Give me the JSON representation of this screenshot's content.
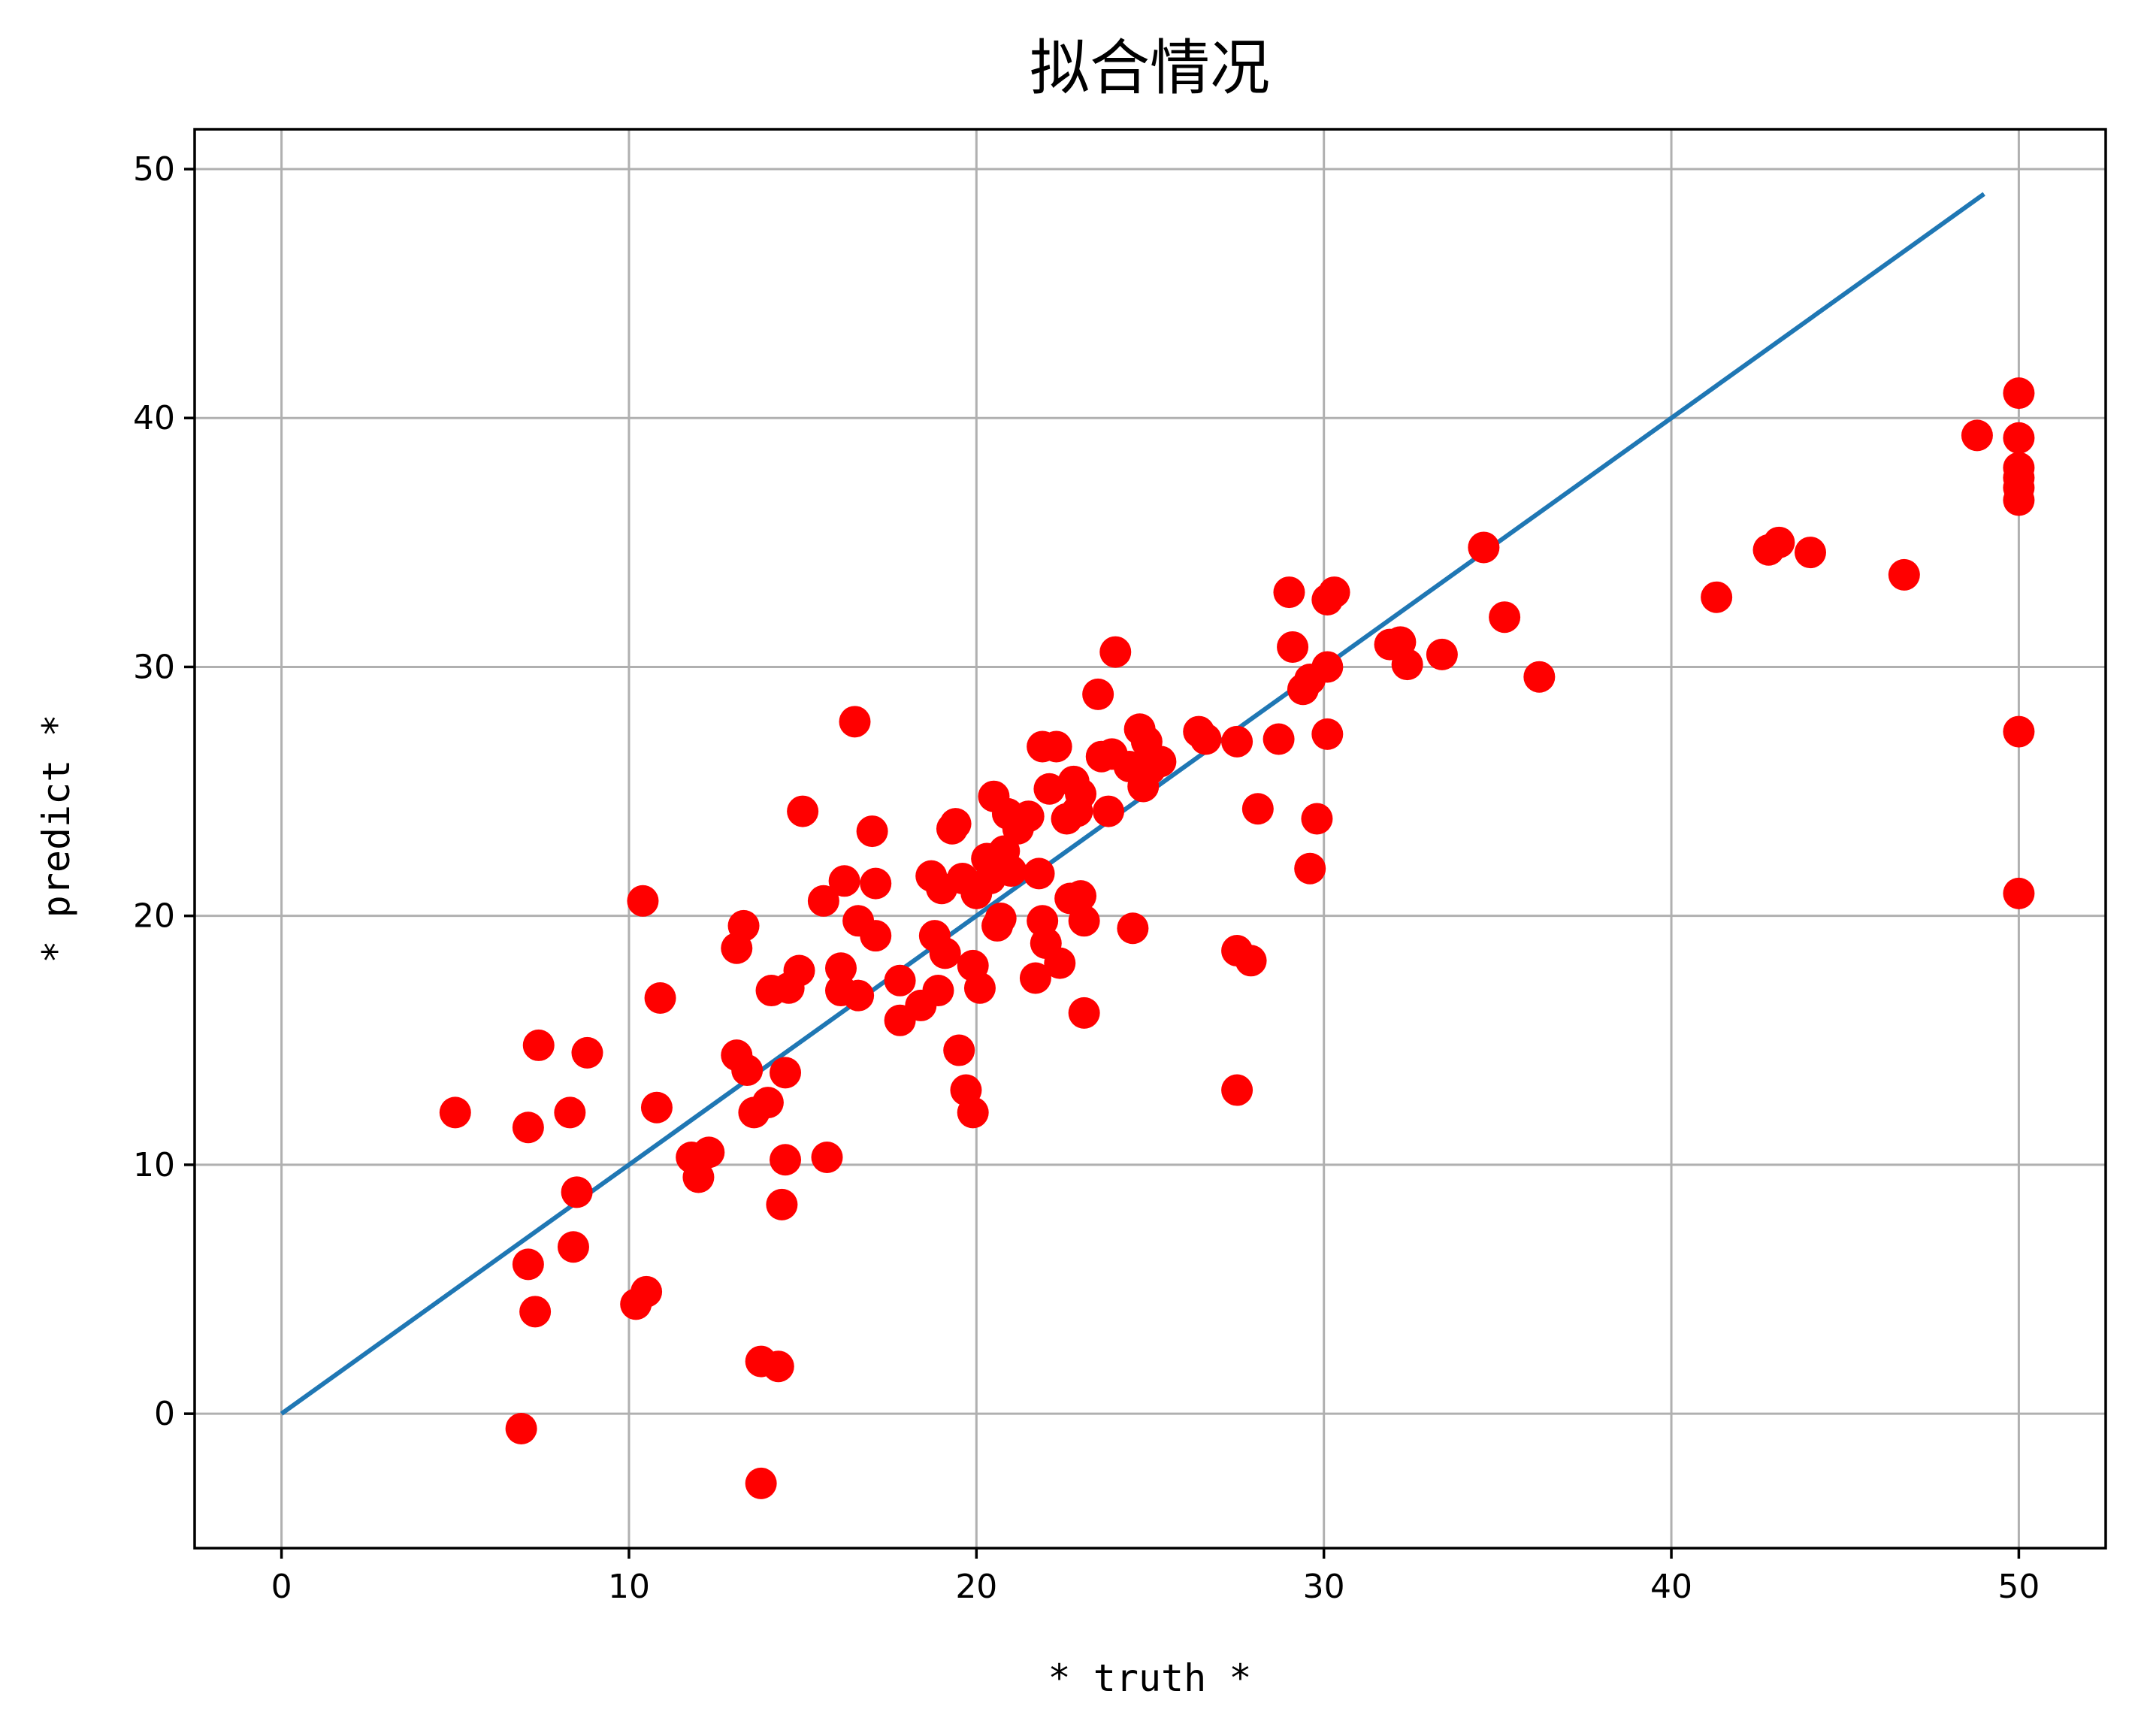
{
  "chart_data": {
    "type": "scatter",
    "title": "拟合情况",
    "xlabel": "* truth *",
    "ylabel": "* predict *",
    "xlim": [
      -2.5,
      52.5
    ],
    "ylim": [
      -5.4,
      51.6
    ],
    "xticks": [
      0,
      10,
      20,
      30,
      40,
      50
    ],
    "yticks": [
      0,
      10,
      20,
      30,
      40,
      50
    ],
    "grid": true,
    "colors": {
      "points": "#ff0000",
      "fit_line": "#1f77b4",
      "grid": "#b0b0b0"
    },
    "fit_line": {
      "x": [
        0,
        49
      ],
      "y": [
        0,
        49
      ]
    },
    "points": [
      [
        5.0,
        12.1
      ],
      [
        6.9,
        -0.6
      ],
      [
        7.1,
        6.0
      ],
      [
        7.1,
        11.5
      ],
      [
        7.3,
        4.1
      ],
      [
        7.4,
        14.8
      ],
      [
        8.3,
        12.1
      ],
      [
        8.4,
        6.7
      ],
      [
        8.5,
        8.9
      ],
      [
        8.8,
        14.5
      ],
      [
        10.2,
        4.4
      ],
      [
        10.4,
        20.6
      ],
      [
        10.5,
        4.9
      ],
      [
        10.8,
        12.3
      ],
      [
        10.9,
        16.7
      ],
      [
        11.8,
        10.3
      ],
      [
        12.0,
        9.5
      ],
      [
        12.3,
        10.5
      ],
      [
        13.1,
        18.7
      ],
      [
        13.1,
        14.4
      ],
      [
        13.3,
        19.6
      ],
      [
        13.4,
        13.8
      ],
      [
        13.6,
        12.1
      ],
      [
        13.8,
        2.1
      ],
      [
        13.8,
        -2.8
      ],
      [
        14.0,
        12.5
      ],
      [
        14.1,
        17.0
      ],
      [
        14.3,
        1.9
      ],
      [
        14.4,
        8.4
      ],
      [
        14.5,
        13.7
      ],
      [
        14.5,
        10.2
      ],
      [
        14.6,
        17.1
      ],
      [
        14.9,
        17.8
      ],
      [
        15.0,
        24.2
      ],
      [
        15.6,
        20.6
      ],
      [
        15.7,
        10.3
      ],
      [
        16.1,
        17.9
      ],
      [
        16.1,
        17.0
      ],
      [
        16.2,
        21.4
      ],
      [
        16.5,
        27.8
      ],
      [
        16.6,
        16.8
      ],
      [
        16.6,
        19.8
      ],
      [
        17.0,
        23.4
      ],
      [
        17.1,
        21.3
      ],
      [
        17.1,
        19.2
      ],
      [
        17.8,
        17.4
      ],
      [
        17.8,
        15.8
      ],
      [
        18.4,
        16.4
      ],
      [
        18.7,
        21.6
      ],
      [
        18.8,
        19.2
      ],
      [
        18.9,
        17.0
      ],
      [
        19.0,
        21.1
      ],
      [
        19.1,
        18.5
      ],
      [
        19.3,
        23.5
      ],
      [
        19.4,
        23.7
      ],
      [
        19.5,
        14.6
      ],
      [
        19.6,
        21.5
      ],
      [
        19.7,
        13.0
      ],
      [
        19.9,
        12.1
      ],
      [
        19.9,
        18.0
      ],
      [
        20.0,
        20.9
      ],
      [
        20.1,
        17.1
      ],
      [
        20.3,
        22.3
      ],
      [
        20.4,
        21.5
      ],
      [
        20.5,
        24.8
      ],
      [
        20.6,
        19.6
      ],
      [
        20.7,
        19.9
      ],
      [
        20.8,
        22.6
      ],
      [
        20.9,
        24.1
      ],
      [
        21.0,
        21.8
      ],
      [
        21.2,
        23.5
      ],
      [
        21.5,
        24.0
      ],
      [
        21.7,
        17.5
      ],
      [
        21.8,
        21.7
      ],
      [
        21.9,
        19.8
      ],
      [
        21.9,
        26.8
      ],
      [
        22.0,
        18.9
      ],
      [
        22.1,
        25.1
      ],
      [
        22.3,
        26.8
      ],
      [
        22.4,
        18.1
      ],
      [
        22.6,
        23.9
      ],
      [
        22.7,
        20.7
      ],
      [
        22.8,
        25.4
      ],
      [
        22.9,
        24.2
      ],
      [
        23.0,
        24.9
      ],
      [
        23.0,
        20.8
      ],
      [
        23.1,
        19.8
      ],
      [
        23.1,
        16.1
      ],
      [
        23.5,
        28.9
      ],
      [
        23.6,
        26.4
      ],
      [
        23.8,
        24.2
      ],
      [
        23.9,
        26.5
      ],
      [
        24.0,
        30.6
      ],
      [
        24.4,
        26.0
      ],
      [
        24.5,
        19.5
      ],
      [
        24.7,
        27.5
      ],
      [
        24.8,
        25.2
      ],
      [
        24.9,
        27.0
      ],
      [
        25.0,
        25.9
      ],
      [
        25.3,
        26.2
      ],
      [
        26.4,
        27.4
      ],
      [
        26.6,
        27.1
      ],
      [
        27.5,
        27.0
      ],
      [
        27.5,
        18.6
      ],
      [
        27.5,
        13.0
      ],
      [
        27.9,
        18.2
      ],
      [
        28.1,
        24.3
      ],
      [
        28.7,
        27.1
      ],
      [
        29.0,
        33.0
      ],
      [
        29.1,
        30.8
      ],
      [
        29.4,
        29.1
      ],
      [
        29.6,
        21.9
      ],
      [
        29.6,
        29.5
      ],
      [
        29.8,
        23.9
      ],
      [
        30.1,
        32.7
      ],
      [
        30.1,
        30.0
      ],
      [
        30.1,
        27.3
      ],
      [
        30.3,
        33.0
      ],
      [
        31.9,
        30.9
      ],
      [
        32.2,
        31.0
      ],
      [
        32.4,
        30.1
      ],
      [
        33.4,
        30.5
      ],
      [
        34.6,
        34.8
      ],
      [
        35.2,
        32.0
      ],
      [
        36.2,
        29.6
      ],
      [
        41.3,
        32.8
      ],
      [
        42.8,
        34.7
      ],
      [
        43.1,
        35.0
      ],
      [
        44.0,
        34.6
      ],
      [
        46.7,
        33.7
      ],
      [
        48.8,
        39.3
      ],
      [
        50.0,
        41.0
      ],
      [
        50.0,
        39.2
      ],
      [
        50.0,
        38.0
      ],
      [
        50.0,
        37.6
      ],
      [
        50.0,
        37.2
      ],
      [
        50.0,
        36.7
      ],
      [
        50.0,
        27.4
      ],
      [
        50.0,
        20.9
      ]
    ]
  }
}
